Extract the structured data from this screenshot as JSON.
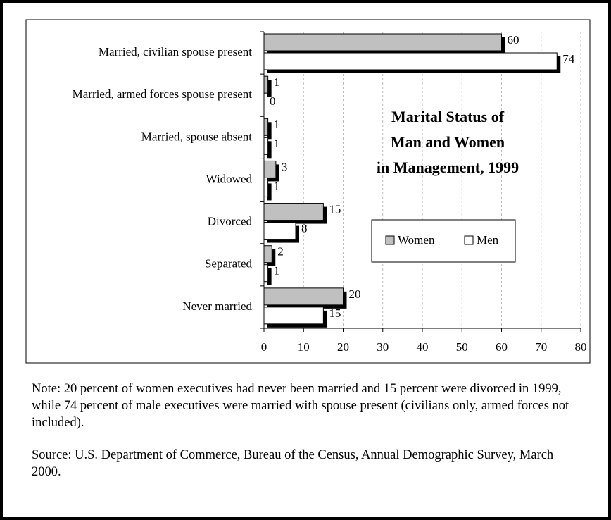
{
  "chart_data": {
    "type": "hbar",
    "title": [
      "Marital Status of",
      "Man and Women",
      "in Management, 1999"
    ],
    "categories": [
      "Married, civilian spouse present",
      "Married, armed forces spouse present",
      "Married, spouse absent",
      "Widowed",
      "Divorced",
      "Separated",
      "Never married"
    ],
    "series": [
      {
        "name": "Women",
        "color": "#c0c0c0",
        "values": [
          60,
          1,
          1,
          3,
          15,
          2,
          20
        ]
      },
      {
        "name": "Men",
        "color": "#ffffff",
        "values": [
          74,
          0,
          1,
          1,
          8,
          1,
          15
        ]
      }
    ],
    "xlim": [
      0,
      80
    ],
    "xticks": [
      0,
      10,
      20,
      30,
      40,
      50,
      60,
      70,
      80
    ],
    "grid": true,
    "legend": "center-right"
  },
  "notes": [
    "Note: 20 percent of women executives had never been married and 15 percent were divorced in 1999, while 74 percent of male executives were married with spouse present (civilians only, armed forces not included).",
    "Source: U.S. Department of Commerce, Bureau of the Census, Annual Demographic Survey, March 2000."
  ]
}
